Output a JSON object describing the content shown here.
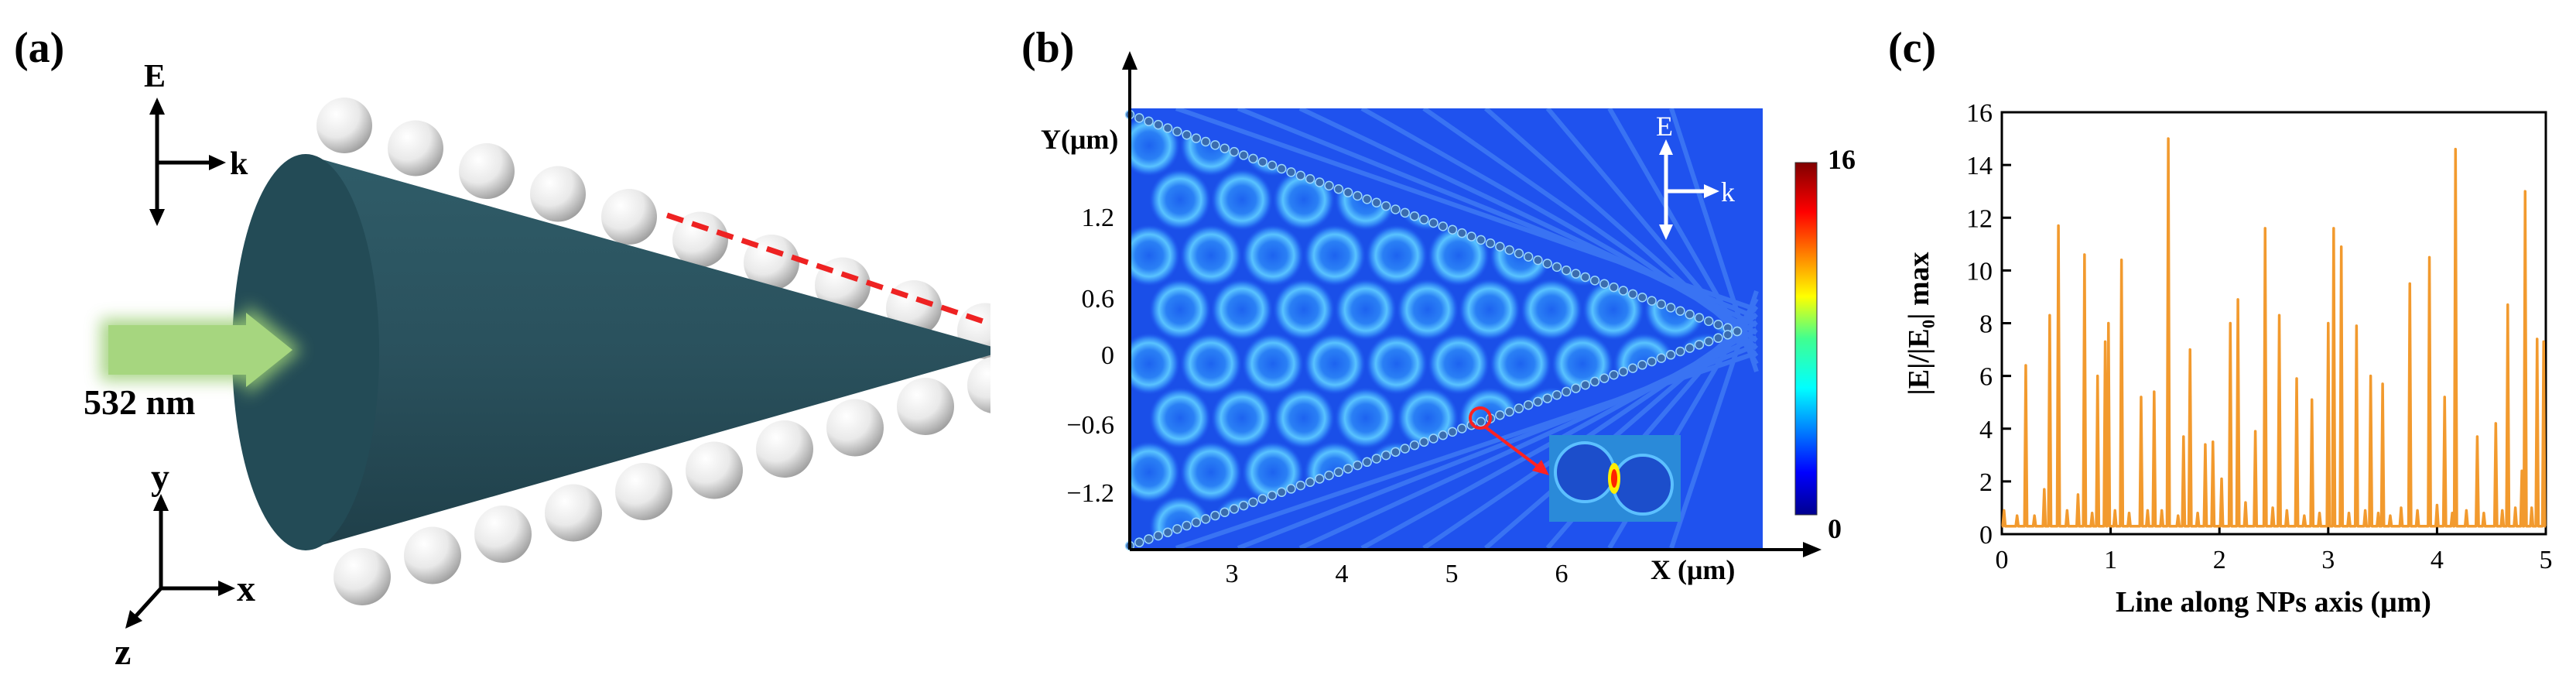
{
  "panel_a": {
    "label": "(a)",
    "e_label": "E",
    "k_label": "k",
    "wavelength_label": "532 nm",
    "axis_y": "y",
    "axis_x": "x",
    "axis_z": "z",
    "colors": {
      "cone": "#2c5561",
      "arrow": "#9ccf74",
      "dash": "#ee2222",
      "sphere": "#e9e9e9"
    }
  },
  "panel_b": {
    "label": "(b)",
    "y_axis_label": "Y(μm)",
    "x_axis_label": "X (μm)",
    "y_ticks": [
      "1.2",
      "0.6",
      "0",
      "−0.6",
      "−1.2"
    ],
    "x_ticks": [
      "3",
      "4",
      "5",
      "6"
    ],
    "e_label": "E",
    "k_label": "k",
    "colorbar": {
      "max_label": "16",
      "min_label": "0",
      "min": 0,
      "max": 16
    }
  },
  "panel_c": {
    "label": "(c)",
    "chart_data": {
      "type": "line",
      "title": "",
      "xlabel": "Line along NPs axis  (μm)",
      "ylabel": "|E|/|E₀|  max",
      "xlim": [
        0,
        5
      ],
      "ylim": [
        0,
        16
      ],
      "x_ticks": [
        "0",
        "1",
        "2",
        "3",
        "4",
        "5"
      ],
      "y_ticks": [
        "0",
        "2",
        "4",
        "6",
        "8",
        "10",
        "12",
        "14",
        "16"
      ],
      "color": "#f29a2e",
      "peaks": [
        [
          0.02,
          0.9
        ],
        [
          0.14,
          0.7
        ],
        [
          0.22,
          6.4
        ],
        [
          0.3,
          0.7
        ],
        [
          0.39,
          1.7
        ],
        [
          0.44,
          8.3
        ],
        [
          0.52,
          11.7
        ],
        [
          0.6,
          0.9
        ],
        [
          0.7,
          1.5
        ],
        [
          0.76,
          10.6
        ],
        [
          0.83,
          0.8
        ],
        [
          0.88,
          6.0
        ],
        [
          0.95,
          7.3
        ],
        [
          0.98,
          8.0
        ],
        [
          1.04,
          0.9
        ],
        [
          1.1,
          10.4
        ],
        [
          1.17,
          0.8
        ],
        [
          1.28,
          5.2
        ],
        [
          1.34,
          0.9
        ],
        [
          1.4,
          5.4
        ],
        [
          1.47,
          0.9
        ],
        [
          1.53,
          15.0
        ],
        [
          1.62,
          0.7
        ],
        [
          1.67,
          3.7
        ],
        [
          1.73,
          7.0
        ],
        [
          1.8,
          0.8
        ],
        [
          1.87,
          3.4
        ],
        [
          1.94,
          3.5
        ],
        [
          2.02,
          2.1
        ],
        [
          2.1,
          8.0
        ],
        [
          2.17,
          8.9
        ],
        [
          2.24,
          1.2
        ],
        [
          2.33,
          3.9
        ],
        [
          2.42,
          11.6
        ],
        [
          2.49,
          1.0
        ],
        [
          2.55,
          8.3
        ],
        [
          2.62,
          0.9
        ],
        [
          2.71,
          5.9
        ],
        [
          2.78,
          0.7
        ],
        [
          2.85,
          5.1
        ],
        [
          2.92,
          0.8
        ],
        [
          3.0,
          8.0
        ],
        [
          3.05,
          11.6
        ],
        [
          3.12,
          10.9
        ],
        [
          3.19,
          0.8
        ],
        [
          3.26,
          7.9
        ],
        [
          3.34,
          0.9
        ],
        [
          3.39,
          6.0
        ],
        [
          3.46,
          0.8
        ],
        [
          3.5,
          5.7
        ],
        [
          3.57,
          0.7
        ],
        [
          3.67,
          1.0
        ],
        [
          3.75,
          9.5
        ],
        [
          3.82,
          0.9
        ],
        [
          3.93,
          10.5
        ],
        [
          4.0,
          1.1
        ],
        [
          4.07,
          5.2
        ],
        [
          4.14,
          0.8
        ],
        [
          4.17,
          14.6
        ],
        [
          4.27,
          0.9
        ],
        [
          4.37,
          3.7
        ],
        [
          4.43,
          0.8
        ],
        [
          4.54,
          4.2
        ],
        [
          4.6,
          0.9
        ],
        [
          4.65,
          8.7
        ],
        [
          4.72,
          1.0
        ],
        [
          4.78,
          2.4
        ],
        [
          4.81,
          13.0
        ],
        [
          4.87,
          1.0
        ],
        [
          4.92,
          7.4
        ],
        [
          4.98,
          7.3
        ]
      ]
    }
  }
}
